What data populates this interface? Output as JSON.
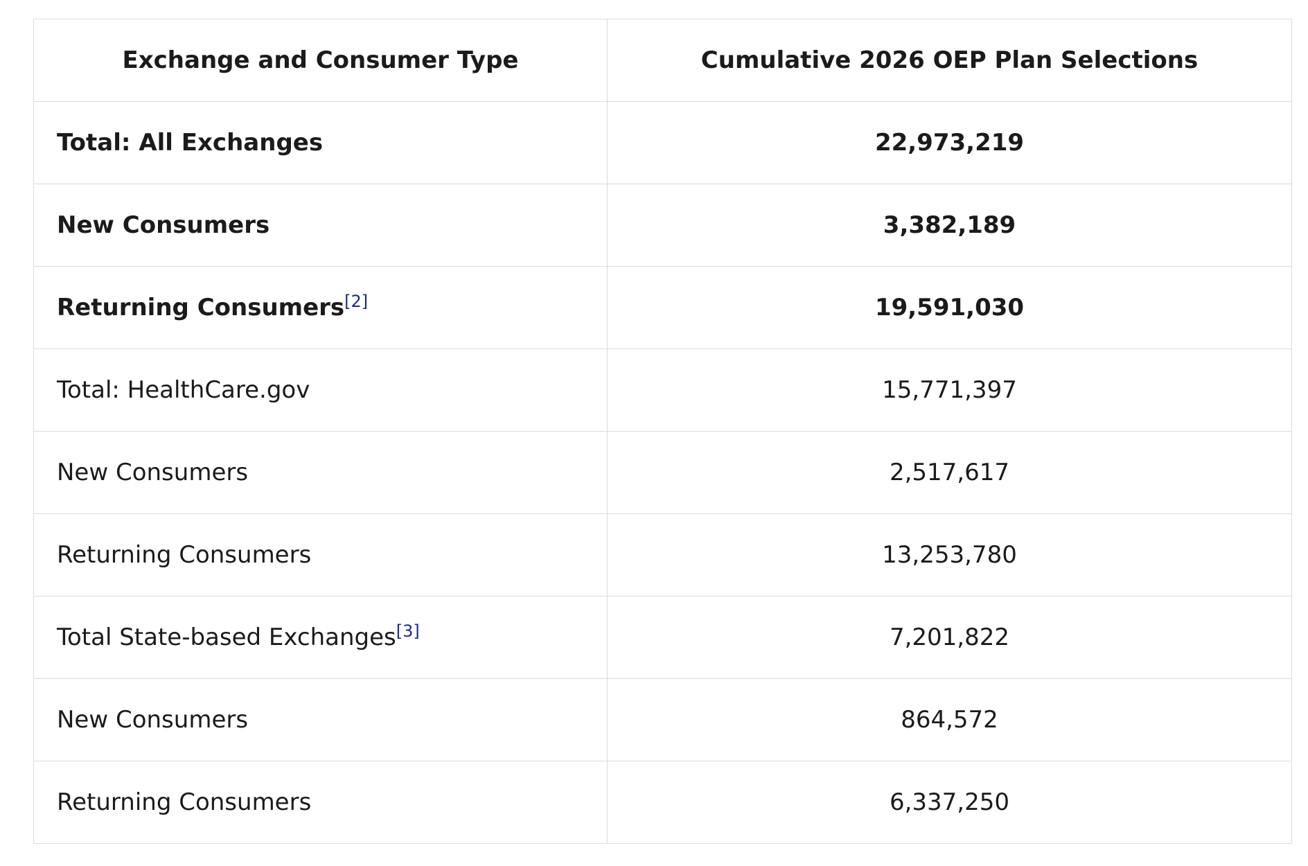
{
  "table": {
    "header": [
      "Exchange and Consumer Type",
      "Cumulative 2026 OEP Plan Selections"
    ],
    "rows": [
      {
        "label": "Total: All Exchanges",
        "value": "22,973,219",
        "bold": true
      },
      {
        "label": "New Consumers",
        "value": "3,382,189",
        "bold": true
      },
      {
        "label": "Returning Consumers",
        "note": "[2]",
        "value": "19,591,030",
        "bold": true
      },
      {
        "label": "Total: HealthCare.gov",
        "value": "15,771,397",
        "bold": false
      },
      {
        "label": "New Consumers",
        "value": "2,517,617",
        "bold": false
      },
      {
        "label": "Returning Consumers",
        "value": "13,253,780",
        "bold": false
      },
      {
        "label": "Total State-based Exchanges",
        "note": "[3]",
        "value": "7,201,822",
        "bold": false
      },
      {
        "label": "New Consumers",
        "value": "864,572",
        "bold": false
      },
      {
        "label": "Returning Consumers",
        "value": "6,337,250",
        "bold": false
      }
    ]
  }
}
